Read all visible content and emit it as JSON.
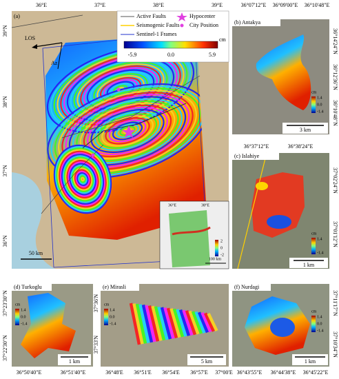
{
  "panel_a": {
    "label": "(a)",
    "lon_ticks": [
      "36°E",
      "37°E",
      "38°E",
      "39°E"
    ],
    "lat_ticks": [
      "39°N",
      "38°N",
      "37°N",
      "36°N"
    ],
    "legend": [
      "Active Faults",
      "Seismogenic Faults",
      "Sentinel-1 Frames",
      "Hypocenter",
      "City Position"
    ],
    "colorbar": {
      "unit": "cm",
      "ticks": [
        "-5.9",
        "0.0",
        "5.9"
      ]
    },
    "los": "LOS",
    "az": "Az",
    "scale": "50 km",
    "inset": {
      "lon_ticks": [
        "36°E",
        "38°E"
      ],
      "colorbar_ticks": [
        "2",
        "0",
        "-2"
      ],
      "scale": "100 km"
    }
  },
  "panel_b": {
    "label": "(b) Antakya",
    "lon_ticks": [
      "36°07'12\"E",
      "36°09'00\"E",
      "36°10'48\"E"
    ],
    "lat_ticks": [
      "36°14'24\"N",
      "36°12'36\"N",
      "36°10'48\"N"
    ],
    "colorbar": {
      "unit": "cm",
      "ticks": [
        "1.4",
        "0.0",
        "-1.4"
      ]
    },
    "scale": "3 km"
  },
  "panel_c": {
    "label": "(c) Islahiye",
    "lon_ticks": [
      "36°37'12\"E",
      "36°38'24\"E"
    ],
    "lat_ticks": [
      "37°02'24\"N",
      "37°01'12\"N"
    ],
    "colorbar": {
      "unit": "cm",
      "ticks": [
        "1.4",
        "-1.4"
      ]
    },
    "scale": "1 km"
  },
  "panel_d": {
    "label": "(d) Turkoglu",
    "lat_ticks": [
      "37°23'30\"N",
      "37°22'30\"N"
    ],
    "lon_ticks": [
      "36°50'40\"E",
      "36°51'40\"E"
    ],
    "colorbar": {
      "unit": "cm",
      "ticks": [
        "1.4",
        "0.0",
        "-1.4"
      ]
    },
    "scale": "1 km"
  },
  "panel_e": {
    "label": "(e) Mirasli",
    "lat_ticks": [
      "37°36'N",
      "37°33'N"
    ],
    "lon_ticks": [
      "36°48'E",
      "36°51'E",
      "36°54'E",
      "36°57'E",
      "37°00'E"
    ],
    "colorbar": {
      "unit": "cm",
      "ticks": [
        "1.4",
        "0.0",
        "-1.4"
      ]
    },
    "scale": "5 km"
  },
  "panel_f": {
    "label": "(f) Nurdagi",
    "lat_ticks": [
      "37°11'17\"N",
      "37°10'34\"N"
    ],
    "lon_ticks": [
      "36°43'55\"E",
      "36°44'38\"E",
      "36°45'22\"E"
    ],
    "colorbar": {
      "unit": "cm",
      "ticks": [
        "1.4",
        "0.0",
        "-1.4"
      ]
    },
    "scale": "1 km"
  }
}
